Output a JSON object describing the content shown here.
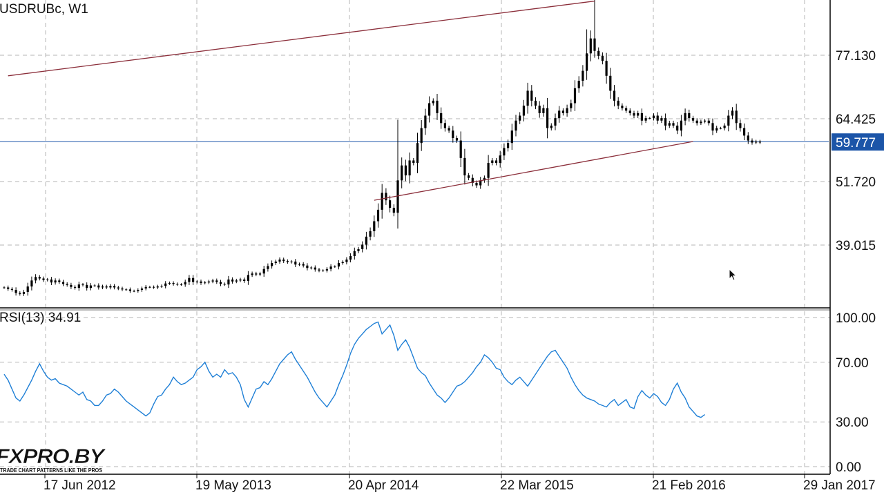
{
  "window": {
    "symbol_title": "USDRUBc, W1",
    "indicator_title": "RSI(13) 34.91"
  },
  "logo": {
    "name": "FXPRO.BY",
    "tagline": "TRADE CHART PATTERNS LIKE THE PROS"
  },
  "colors": {
    "background": "#ffffff",
    "candles": "#000000",
    "rsi_line": "#1e7fd6",
    "trendlines": "#8b2e3a",
    "current_price_line": "#1c55a8",
    "current_price_label_bg": "#1c55a8",
    "current_price_label_text": "#ffffff",
    "grid": "#b5b5b5"
  },
  "icons": {
    "cursor": "mouse-pointer-icon"
  },
  "chart_data": [
    {
      "type": "candlestick",
      "title": "USDRUBc, W1",
      "ylim": [
        27.5,
        88.0
      ],
      "y_ticks": [
        "77.130",
        "64.425",
        "51.720",
        "39.015"
      ],
      "current_price": "59.777",
      "x_tick_labels": [
        "17 Jun 2012",
        "19 May 2013",
        "20 Apr 2014",
        "22 Mar 2015",
        "21 Feb 2016",
        "29 Jan 2017"
      ],
      "grid": true,
      "trendlines": [
        {
          "name": "upper channel",
          "points": [
            [
              1,
              73
            ],
            [
              150,
              88
            ]
          ]
        },
        {
          "name": "lower channel",
          "points": [
            [
              94,
              48
            ],
            [
              175,
              59.8
            ]
          ]
        }
      ],
      "close_series": [
        30.5,
        30.2,
        30.0,
        29.4,
        29.2,
        29.6,
        30.7,
        31.9,
        32.6,
        32.3,
        32.0,
        32.1,
        31.5,
        31.9,
        31.6,
        31.2,
        31.0,
        30.6,
        30.4,
        31.1,
        31.0,
        30.4,
        30.9,
        30.9,
        30.5,
        30.7,
        30.5,
        30.8,
        30.5,
        30.3,
        30.1,
        30.1,
        29.8,
        29.8,
        30.0,
        30.3,
        30.6,
        30.6,
        30.5,
        30.7,
        30.8,
        31.3,
        31.4,
        31.2,
        31.1,
        31.1,
        31.6,
        32.4,
        31.6,
        31.7,
        31.4,
        31.5,
        31.7,
        31.9,
        31.6,
        31.2,
        31.1,
        32.1,
        31.7,
        31.9,
        32.1,
        31.8,
        33.0,
        33.3,
        33.1,
        33.3,
        34.2,
        34.8,
        35.4,
        35.7,
        36.1,
        35.8,
        35.6,
        35.7,
        35.1,
        35.2,
        34.9,
        34.4,
        34.5,
        34.1,
        33.9,
        33.9,
        34.2,
        34.7,
        34.7,
        35.4,
        35.6,
        36.1,
        36.8,
        37.8,
        38.2,
        39.1,
        40.7,
        41.8,
        43.8,
        46.1,
        49.5,
        48.0,
        46.5,
        45.5,
        52.0,
        55.0,
        53.0,
        56.0,
        55.5,
        59.5,
        62.5,
        65.0,
        67.5,
        68.0,
        65.5,
        63.5,
        62.5,
        62.0,
        60.5,
        60.0,
        56.5,
        53.0,
        52.5,
        51.5,
        51.0,
        52.0,
        52.5,
        55.5,
        56.0,
        55.5,
        57.0,
        58.5,
        59.5,
        62.0,
        64.0,
        65.0,
        67.0,
        70.0,
        68.0,
        67.0,
        65.5,
        66.5,
        62.5,
        63.0,
        64.5,
        66.0,
        65.5,
        66.5,
        67.5,
        70.5,
        72.0,
        74.0,
        77.5,
        80.5,
        78.0,
        77.0,
        76.0,
        73.0,
        70.0,
        68.0,
        67.0,
        66.5,
        66.0,
        65.5,
        65.0,
        65.5,
        64.0,
        64.5,
        64.5,
        65.0,
        64.0,
        64.5,
        63.0,
        63.5,
        63.0,
        62.0,
        64.0,
        65.5,
        64.5,
        64.0,
        63.5,
        63.8,
        64.0,
        63.5,
        62.0,
        62.5,
        62.5,
        63.0,
        65.0,
        66.0,
        63.5,
        62.5,
        61.0,
        60.0,
        59.6,
        59.8,
        59.6
      ]
    },
    {
      "type": "line",
      "title": "RSI(13) 34.91",
      "ylim": [
        0,
        100
      ],
      "y_ticks": [
        "100.00",
        "70.00",
        "30.00",
        "0.00"
      ],
      "x_tick_labels": [
        "17 Jun 2012",
        "19 May 2013",
        "20 Apr 2014",
        "22 Mar 2015",
        "21 Feb 2016",
        "29 Jan 2017"
      ],
      "grid": true,
      "series": [
        {
          "values": [
            62,
            58,
            52,
            46,
            44,
            48,
            53,
            58,
            64,
            69,
            64,
            60,
            58,
            59,
            56,
            55,
            54,
            52,
            50,
            48,
            50,
            45,
            44,
            41,
            41,
            44,
            48,
            49,
            52,
            50,
            47,
            44,
            42,
            40,
            38,
            36,
            34,
            36,
            42,
            47,
            48,
            52,
            55,
            60,
            57,
            55,
            56,
            58,
            60,
            65,
            67,
            70,
            64,
            60,
            62,
            60,
            65,
            62,
            63,
            60,
            55,
            45,
            40,
            46,
            52,
            53,
            57,
            55,
            59,
            64,
            69,
            72,
            75,
            77,
            72,
            68,
            64,
            60,
            55,
            50,
            46,
            43,
            40,
            44,
            48,
            55,
            61,
            68,
            76,
            82,
            86,
            89,
            92,
            94,
            96,
            97,
            89,
            92,
            95,
            88,
            78,
            82,
            85,
            80,
            73,
            66,
            63,
            61,
            56,
            52,
            48,
            46,
            43,
            46,
            50,
            54,
            55,
            57,
            60,
            63,
            67,
            70,
            75,
            73,
            70,
            66,
            65,
            60,
            57,
            55,
            58,
            60,
            57,
            54,
            58,
            62,
            66,
            70,
            74,
            77,
            78,
            74,
            70,
            66,
            60,
            55,
            51,
            48,
            46,
            45,
            44,
            42,
            41,
            40,
            43,
            45,
            41,
            43,
            45,
            40,
            39,
            47,
            51,
            48,
            46,
            49,
            47,
            43,
            41,
            45,
            52,
            56,
            50,
            46,
            40,
            37,
            34,
            33,
            34.9
          ]
        }
      ]
    }
  ]
}
